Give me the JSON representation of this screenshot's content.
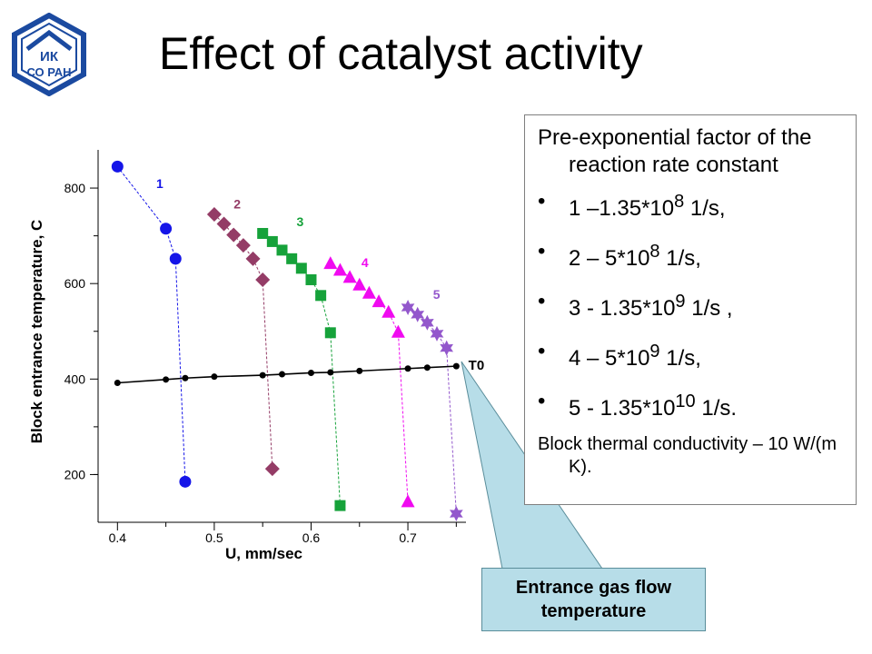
{
  "title": "Effect of catalyst activity",
  "logo": {
    "line1": "ИК",
    "line2": "СО РАН"
  },
  "info": {
    "heading": "Pre-exponential factor of the reaction rate constant",
    "items": [
      {
        "label": "1 –1.35*10",
        "exp": "8",
        "unit": " 1/s,"
      },
      {
        "label": "2 – 5*10",
        "exp": "8",
        "unit": " 1/s,"
      },
      {
        "label": "3 - 1.35*10",
        "exp": "9",
        "unit": " 1/s ,"
      },
      {
        "label": "4 – 5*10",
        "exp": "9",
        "unit": " 1/s,"
      },
      {
        "label": "5 - 1.35*10",
        "exp": "10",
        "unit": " 1/s."
      }
    ],
    "footer": "Block thermal conductivity – 10 W/(m K)."
  },
  "callout": {
    "text": "Entrance gas flow temperature"
  },
  "colors": {
    "s1": "#1515e8",
    "s2": "#943c66",
    "s3": "#16a23a",
    "s4": "#f00af0",
    "s5": "#9357cc",
    "t0": "#000000",
    "callout": "#b7dde8"
  },
  "chart_data": {
    "type": "scatter",
    "xlabel": "U, mm/sec",
    "ylabel": "Block entrance temperature, C",
    "xlim": [
      0.38,
      0.76
    ],
    "ylim": [
      100,
      880
    ],
    "xticks": [
      0.4,
      0.5,
      0.6,
      0.7
    ],
    "yticks": [
      200,
      400,
      600,
      800
    ],
    "grid": false,
    "series": [
      {
        "name": "1",
        "marker": "circle",
        "color": "#1515e8",
        "x": [
          0.4,
          0.45,
          0.46,
          0.47
        ],
        "y": [
          845,
          715,
          652,
          185
        ]
      },
      {
        "name": "2",
        "marker": "diamond",
        "color": "#943c66",
        "x": [
          0.5,
          0.51,
          0.52,
          0.53,
          0.54,
          0.55,
          0.56
        ],
        "y": [
          745,
          725,
          702,
          680,
          652,
          608,
          212
        ]
      },
      {
        "name": "3",
        "marker": "square",
        "color": "#16a23a",
        "x": [
          0.55,
          0.56,
          0.57,
          0.58,
          0.59,
          0.6,
          0.61,
          0.62,
          0.63
        ],
        "y": [
          705,
          688,
          670,
          652,
          632,
          608,
          575,
          497,
          135
        ]
      },
      {
        "name": "4",
        "marker": "triangle",
        "color": "#f00af0",
        "x": [
          0.62,
          0.63,
          0.64,
          0.65,
          0.66,
          0.67,
          0.68,
          0.69,
          0.7
        ],
        "y": [
          642,
          628,
          613,
          597,
          580,
          562,
          540,
          498,
          143
        ]
      },
      {
        "name": "5",
        "marker": "star",
        "color": "#9357cc",
        "x": [
          0.7,
          0.71,
          0.72,
          0.73,
          0.74,
          0.75
        ],
        "y": [
          550,
          535,
          518,
          495,
          465,
          118
        ]
      },
      {
        "name": "T0",
        "marker": "dot",
        "color": "#000000",
        "x": [
          0.4,
          0.45,
          0.47,
          0.5,
          0.55,
          0.57,
          0.6,
          0.62,
          0.65,
          0.7,
          0.72,
          0.75
        ],
        "y": [
          392,
          399,
          402,
          405,
          408,
          410,
          413,
          414,
          417,
          422,
          424,
          427
        ]
      }
    ]
  }
}
